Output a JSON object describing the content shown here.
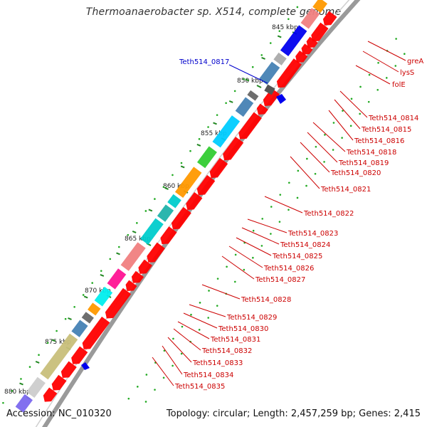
{
  "title": "Thermoanaerobacter sp. X514, complete genome",
  "footer": {
    "accession": "Accession: NC_010320",
    "topology": "Topology: circular; Length: 2,457,259 bp; Genes: 2,415"
  },
  "highlighted_gene": "Teth514_0817",
  "highlighted_color": "#0000cc",
  "kbp_labels": [
    "845 kbp",
    "850 kbp",
    "855 kbp",
    "860 kbp",
    "865 kbp",
    "870 kbp",
    "875 kbp",
    "880 kbp"
  ],
  "gene_labels": [
    "greA",
    "lysS",
    "folE",
    "Teth514_0814",
    "Teth514_0815",
    "Teth514_0816",
    "Teth514_0818",
    "Teth514_0819",
    "Teth514_0820",
    "Teth514_0821",
    "Teth514_0822",
    "Teth514_0823",
    "Teth514_0824",
    "Teth514_0825",
    "Teth514_0826",
    "Teth514_0827",
    "Teth514_0828",
    "Teth514_0829",
    "Teth514_0830",
    "Teth514_0831",
    "Teth514_0832",
    "Teth514_0833",
    "Teth514_0834",
    "Teth514_0835"
  ],
  "colors": {
    "cds": "#ff0000",
    "label": "#cc0000",
    "backbone": "#888888",
    "tick": "#228822",
    "dot": "#22aa22"
  }
}
